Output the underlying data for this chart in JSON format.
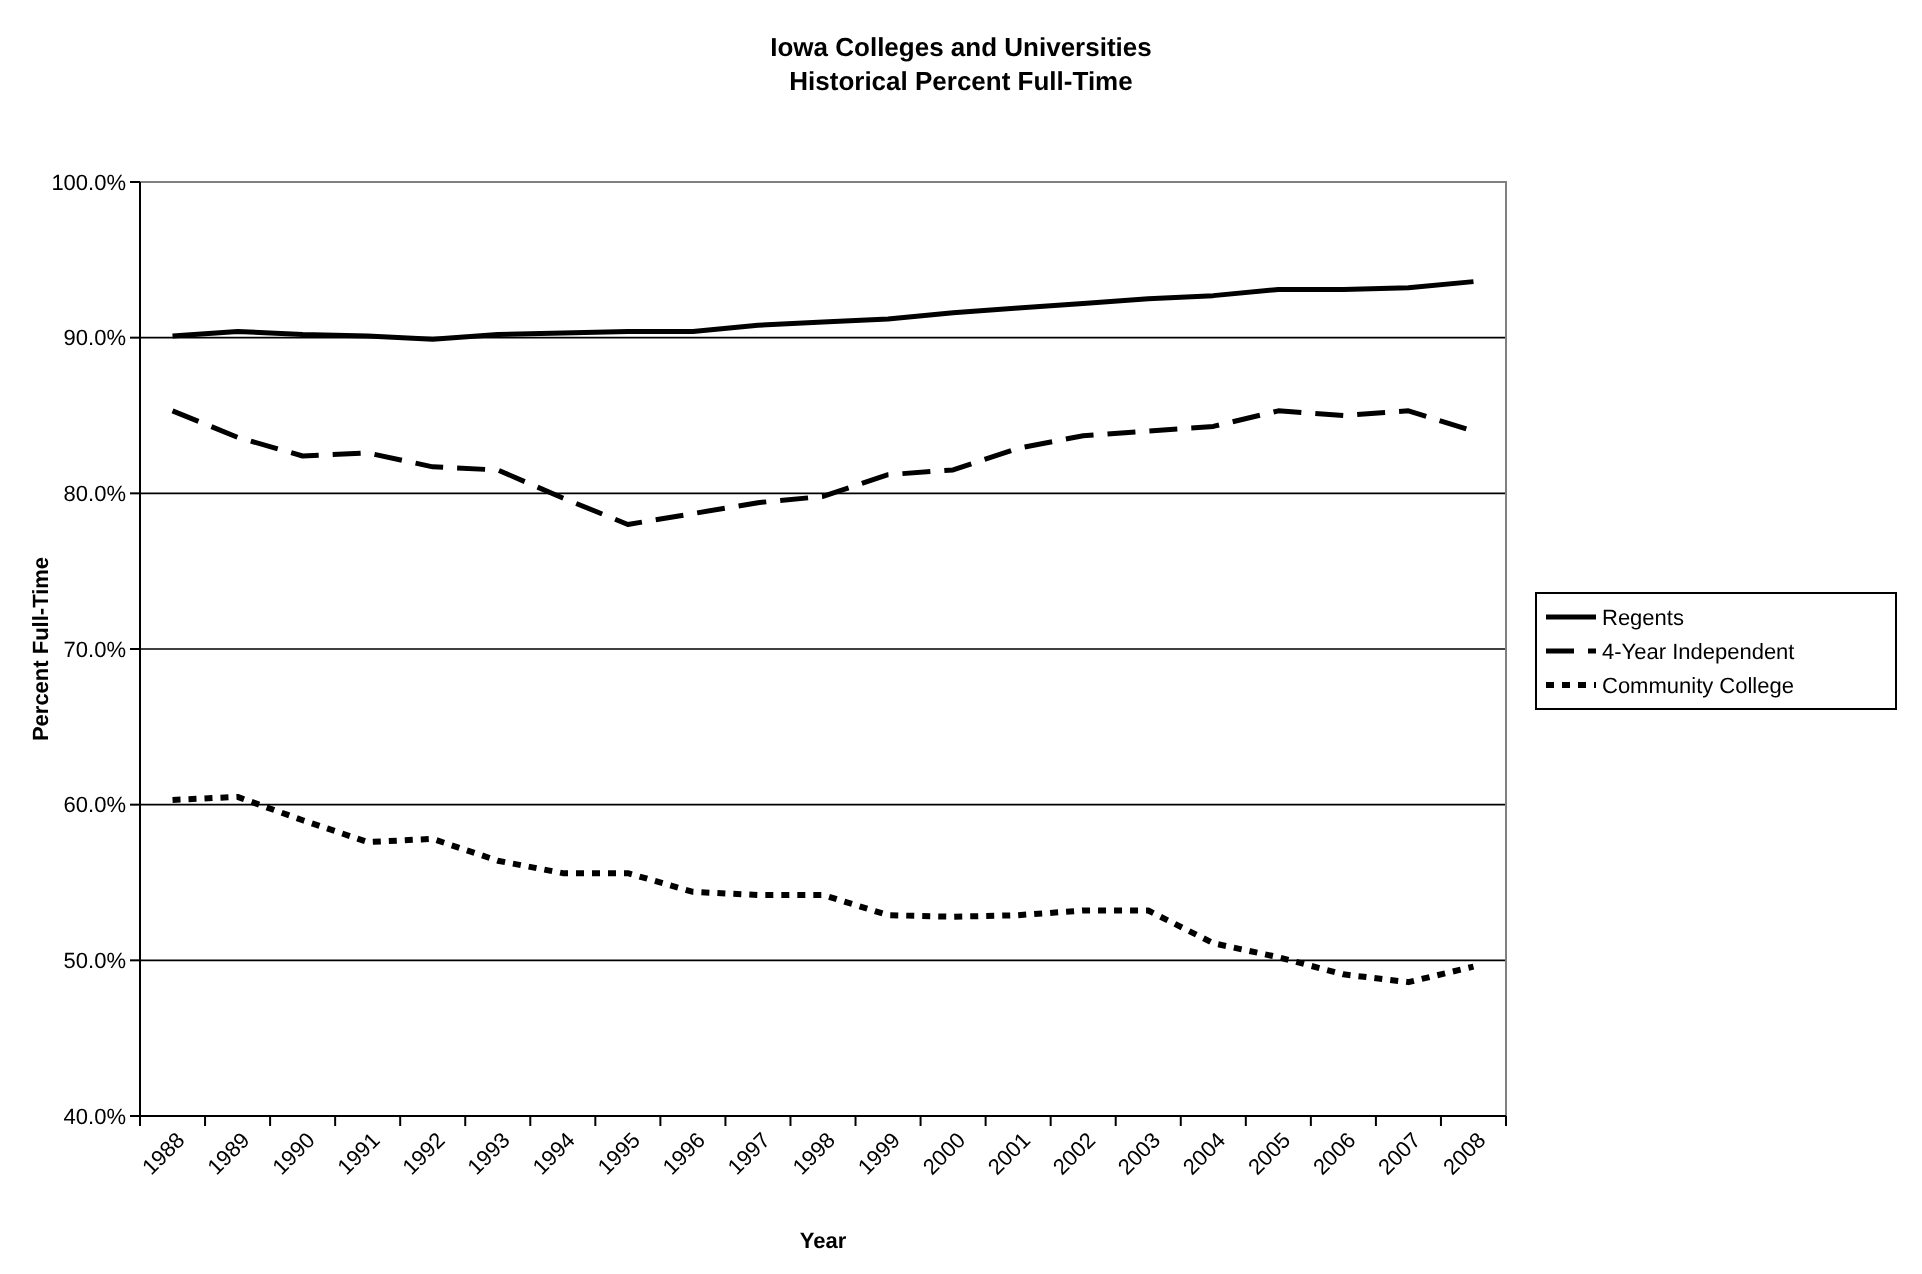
{
  "chart_data": {
    "type": "line",
    "title": "Iowa Colleges and Universities",
    "subtitle": "Historical Percent Full-Time",
    "xlabel": "Year",
    "ylabel": "Percent Full-Time",
    "categories": [
      "1988",
      "1989",
      "1990",
      "1991",
      "1992",
      "1993",
      "1994",
      "1995",
      "1996",
      "1997",
      "1998",
      "1999",
      "2000",
      "2001",
      "2002",
      "2003",
      "2004",
      "2005",
      "2006",
      "2007",
      "2008"
    ],
    "series": [
      {
        "name": "Regents",
        "color": "#000000",
        "line_style": "solid",
        "values": [
          90.1,
          90.4,
          90.2,
          90.1,
          89.9,
          90.2,
          90.3,
          90.4,
          90.4,
          90.8,
          91.0,
          91.2,
          91.6,
          91.9,
          92.2,
          92.5,
          92.7,
          93.1,
          93.1,
          93.2,
          93.6
        ]
      },
      {
        "name": "4-Year Independent",
        "color": "#000000",
        "line_style": "dashed",
        "values": [
          85.3,
          83.6,
          82.4,
          82.6,
          81.7,
          81.5,
          79.7,
          78.0,
          78.7,
          79.4,
          79.8,
          81.2,
          81.5,
          82.9,
          83.7,
          84.0,
          84.3,
          85.3,
          85.0,
          85.3,
          84.0
        ]
      },
      {
        "name": "Community College",
        "color": "#000000",
        "line_style": "dotted",
        "values": [
          60.3,
          60.5,
          59.0,
          57.6,
          57.8,
          56.4,
          55.6,
          55.6,
          54.4,
          54.2,
          54.2,
          52.9,
          52.8,
          52.9,
          53.2,
          53.2,
          51.1,
          50.2,
          49.1,
          48.6,
          49.6
        ]
      }
    ],
    "ylim": [
      40,
      100
    ],
    "yticks": [
      {
        "value": 40,
        "label": "40.0%"
      },
      {
        "value": 50,
        "label": "50.0%"
      },
      {
        "value": 60,
        "label": "60.0%"
      },
      {
        "value": 70,
        "label": "70.0%"
      },
      {
        "value": 80,
        "label": "80.0%"
      },
      {
        "value": 90,
        "label": "90.0%"
      },
      {
        "value": 100,
        "label": "100.0%"
      }
    ],
    "grid": "y",
    "legend": "right"
  }
}
